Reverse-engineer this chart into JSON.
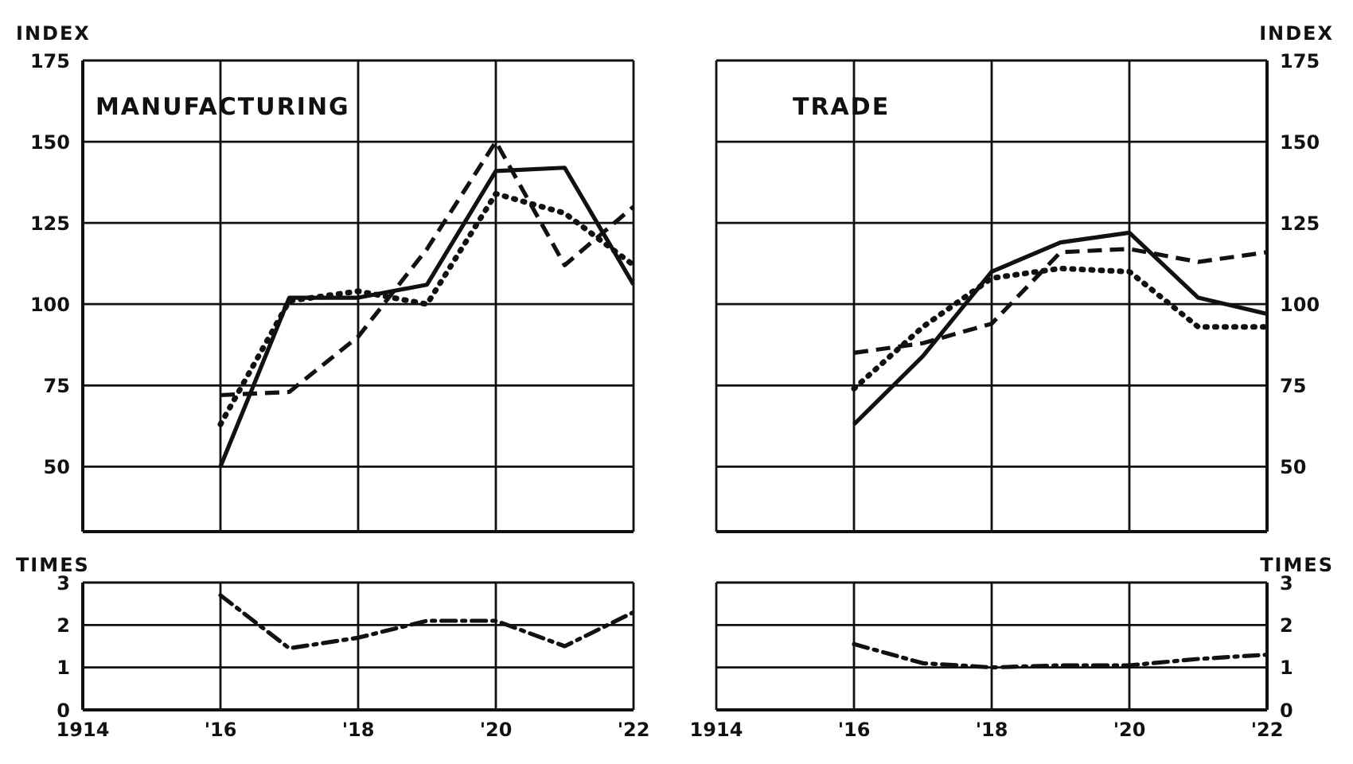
{
  "chart_data": [
    {
      "type": "line",
      "title": "MANUFACTURING",
      "ylabel": "INDEX",
      "x": [
        1916,
        1917,
        1918,
        1919,
        1920,
        1921,
        1922
      ],
      "xlim": [
        1914,
        1922
      ],
      "xticks": [
        1914,
        1916,
        1918,
        1920,
        1922
      ],
      "ylim": [
        30,
        175
      ],
      "yticks": [
        50,
        75,
        100,
        125,
        150,
        175
      ],
      "grid": true,
      "tick_labels": "y",
      "series": [
        {
          "color": "#111111",
          "line_style": "solid",
          "values": [
            50,
            102,
            102,
            106,
            141,
            142,
            106
          ]
        },
        {
          "color": "#111111",
          "line_style": "dashed",
          "values": [
            72,
            73,
            90,
            117,
            150,
            112,
            130
          ]
        },
        {
          "color": "#111111",
          "line_style": "dotted",
          "values": [
            63,
            101,
            104,
            100,
            134,
            128,
            112
          ]
        }
      ]
    },
    {
      "type": "line",
      "title": "TRADE",
      "ylabel": "INDEX",
      "x": [
        1916,
        1917,
        1918,
        1919,
        1920,
        1921,
        1922
      ],
      "xlim": [
        1914,
        1922
      ],
      "xticks": [
        1914,
        1916,
        1918,
        1920,
        1922
      ],
      "ylim": [
        30,
        175
      ],
      "yticks": [
        50,
        75,
        100,
        125,
        150,
        175
      ],
      "grid": true,
      "tick_labels": "y",
      "series": [
        {
          "color": "#111111",
          "line_style": "solid",
          "values": [
            63,
            84,
            110,
            119,
            122,
            102,
            97
          ]
        },
        {
          "color": "#111111",
          "line_style": "dashed",
          "values": [
            85,
            88,
            94,
            116,
            117,
            113,
            116
          ]
        },
        {
          "color": "#111111",
          "line_style": "dotted",
          "values": [
            74,
            93,
            108,
            111,
            110,
            93,
            93
          ]
        }
      ]
    },
    {
      "type": "line",
      "ylabel": "TIMES",
      "x": [
        1916,
        1917,
        1918,
        1919,
        1920,
        1921,
        1922
      ],
      "xlim": [
        1914,
        1922
      ],
      "xticks": [
        {
          "value": 1914,
          "label": "1914"
        },
        {
          "value": 1916,
          "label": "'16"
        },
        {
          "value": 1918,
          "label": "'18"
        },
        {
          "value": 1920,
          "label": "'20"
        },
        {
          "value": 1922,
          "label": "'22"
        }
      ],
      "ylim": [
        0,
        3
      ],
      "yticks": [
        0,
        1,
        2,
        3
      ],
      "grid": true,
      "series": [
        {
          "color": "#111111",
          "line_style": "dashdot",
          "values": [
            2.7,
            1.45,
            1.7,
            2.1,
            2.1,
            1.5,
            2.3
          ]
        }
      ]
    },
    {
      "type": "line",
      "ylabel": "TIMES",
      "x": [
        1916,
        1917,
        1918,
        1919,
        1920,
        1921,
        1922
      ],
      "xlim": [
        1914,
        1922
      ],
      "xticks": [
        {
          "value": 1914,
          "label": "1914"
        },
        {
          "value": 1916,
          "label": "'16"
        },
        {
          "value": 1918,
          "label": "'18"
        },
        {
          "value": 1920,
          "label": "'20"
        },
        {
          "value": 1922,
          "label": "'22"
        }
      ],
      "ylim": [
        0,
        3
      ],
      "yticks": [
        0,
        1,
        2,
        3
      ],
      "grid": true,
      "series": [
        {
          "color": "#111111",
          "line_style": "dashdot",
          "values": [
            1.55,
            1.1,
            1.0,
            1.05,
            1.05,
            1.2,
            1.3
          ]
        }
      ]
    }
  ]
}
